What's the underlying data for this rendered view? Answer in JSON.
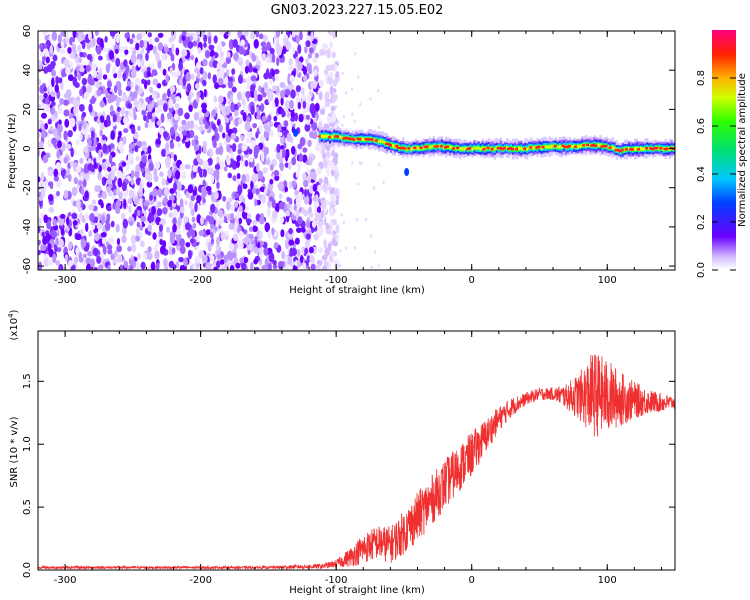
{
  "title": "GN03.2023.227.15.05.E02",
  "chart_data": [
    {
      "type": "heatmap",
      "xlabel": "Height of straight line (km)",
      "ylabel": "Frequency (Hz)",
      "xlim": [
        -320,
        150
      ],
      "ylim": [
        -62,
        60
      ],
      "xticks": [
        -300,
        -200,
        -100,
        0,
        100
      ],
      "yticks": [
        60,
        40,
        20,
        0,
        -20,
        -40,
        -60
      ],
      "colorbar": {
        "label": "Normalized spectral amplitude",
        "range": [
          0.0,
          1.0
        ],
        "ticks": [
          0.0,
          0.2,
          0.4,
          0.6,
          0.8
        ]
      },
      "ridge": {
        "x": [
          -110,
          -100,
          -90,
          -80,
          -70,
          -60,
          -50,
          -40,
          -30,
          -20,
          -10,
          0,
          20,
          40,
          60,
          80,
          90,
          100,
          110,
          120,
          130,
          150
        ],
        "freq": [
          6,
          6,
          5,
          5,
          4,
          2,
          0,
          0,
          1,
          1,
          0,
          0,
          0,
          0,
          1,
          1,
          2,
          1,
          -1,
          0,
          0,
          0
        ]
      },
      "noise_region": {
        "x_from": -320,
        "x_to": -105,
        "freq_from": -62,
        "freq_to": 60
      }
    },
    {
      "type": "line",
      "xlabel": "Height of straight line (km)",
      "ylabel": "SNR (10 * v/v)",
      "y_multiplier": "(x10",
      "y_multiplier_exp": "4",
      "y_multiplier_close": ")",
      "xlim": [
        -320,
        150
      ],
      "ylim": [
        0,
        1.9
      ],
      "xticks": [
        -300,
        -200,
        -100,
        0,
        100
      ],
      "yticks": [
        0.0,
        0.5,
        1.0,
        1.5
      ],
      "color": "#f03030",
      "envelope": {
        "x": [
          -320,
          -150,
          -110,
          -100,
          -90,
          -80,
          -70,
          -60,
          -50,
          -40,
          -30,
          -20,
          -10,
          0,
          10,
          20,
          30,
          40,
          50,
          60,
          70,
          80,
          90,
          100,
          110,
          120,
          130,
          140,
          150
        ],
        "y": [
          0.02,
          0.02,
          0.03,
          0.05,
          0.1,
          0.17,
          0.22,
          0.2,
          0.3,
          0.42,
          0.55,
          0.68,
          0.8,
          0.92,
          1.06,
          1.2,
          1.3,
          1.36,
          1.4,
          1.4,
          1.38,
          1.38,
          1.4,
          1.38,
          1.36,
          1.35,
          1.34,
          1.33,
          1.33
        ]
      },
      "noise": {
        "x": [
          -320,
          -150,
          -110,
          -100,
          -80,
          -60,
          -40,
          -20,
          0,
          20,
          40,
          60,
          70,
          80,
          90,
          100,
          110,
          120,
          130,
          150
        ],
        "amp": [
          0.01,
          0.01,
          0.02,
          0.03,
          0.12,
          0.15,
          0.2,
          0.2,
          0.18,
          0.1,
          0.05,
          0.05,
          0.1,
          0.2,
          0.35,
          0.3,
          0.22,
          0.15,
          0.1,
          0.05
        ]
      }
    }
  ]
}
